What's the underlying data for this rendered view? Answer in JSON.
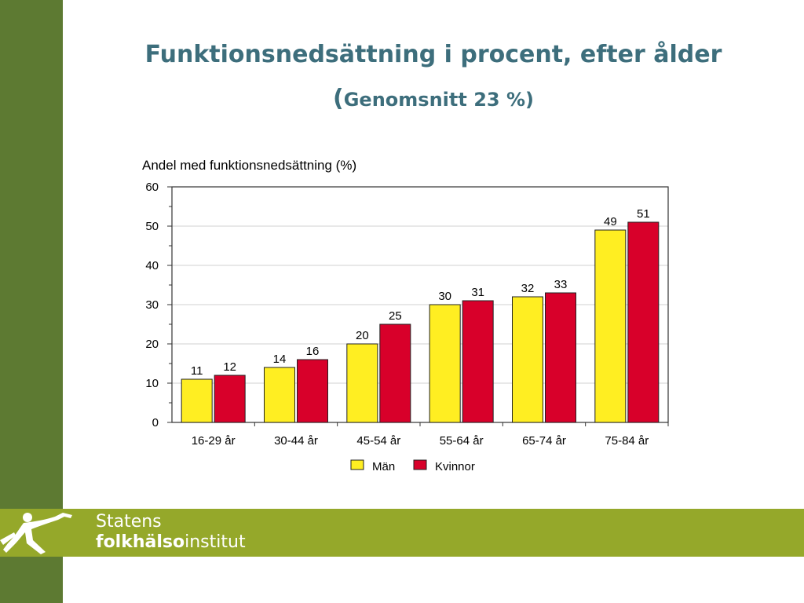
{
  "slide": {
    "title_line1": "Funktionsnedsättning i procent, efter ålder",
    "title_open_paren": "(",
    "title_line2": "Genomsnitt 23 %)"
  },
  "logo": {
    "line1": "Statens",
    "line2_bold": "folkhälso",
    "line2_regular": "institut"
  },
  "colors": {
    "sidebar": "#5d7a32",
    "footer_band": "#95a82a",
    "title": "#3d6e7c",
    "man": "#ffee22",
    "kvinnor": "#d8002a"
  },
  "chart_data": {
    "type": "bar",
    "ylabel": "Andel med funktionsnedsättning (%)",
    "ylim": [
      0,
      60
    ],
    "yticks": [
      0,
      10,
      20,
      30,
      40,
      50,
      60
    ],
    "grid": true,
    "legend_position": "bottom-center",
    "categories": [
      "16-29 år",
      "30-44 år",
      "45-54 år",
      "55-64 år",
      "65-74 år",
      "75-84 år"
    ],
    "series": [
      {
        "name": "Män",
        "color": "#ffee22",
        "values": [
          11,
          14,
          20,
          30,
          32,
          49
        ]
      },
      {
        "name": "Kvinnor",
        "color": "#d8002a",
        "values": [
          12,
          16,
          25,
          31,
          33,
          51
        ]
      }
    ]
  }
}
